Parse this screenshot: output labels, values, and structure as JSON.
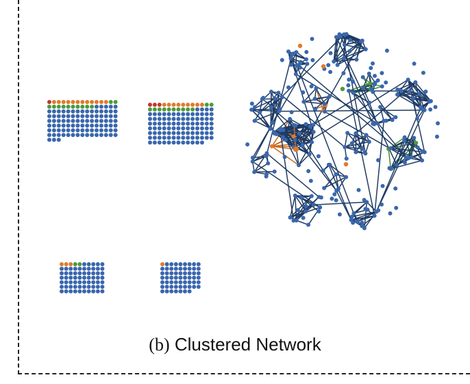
{
  "caption": {
    "prefix": "(b)",
    "text": "Clustered Network"
  },
  "colors": {
    "node_blue": "#3a67ad",
    "node_orange": "#e07b2c",
    "node_green": "#4c9a3d",
    "node_red": "#c0392b",
    "edge_dark": "#1f3b63",
    "edge_orange": "#c96b22",
    "edge_green": "#3d8a33",
    "frame": "#222222"
  },
  "node_groups": [
    {
      "id": "grid-large-left",
      "nodes": 123,
      "highlighted": [
        "red",
        "orange",
        "orange",
        "orange",
        "orange",
        "orange",
        "orange",
        "orange",
        "orange",
        "orange",
        "orange",
        "orange",
        "orange",
        "green",
        "green",
        "green",
        "green",
        "green",
        "green",
        "green",
        "green",
        "green",
        "green",
        "green",
        "green"
      ]
    },
    {
      "id": "grid-large-right",
      "nodes": 124,
      "highlighted": [
        "red",
        "red",
        "red",
        "orange",
        "orange",
        "orange",
        "orange",
        "orange",
        "orange",
        "orange",
        "orange",
        "orange",
        "green",
        "green",
        "green",
        "green",
        "green",
        "green",
        "green",
        "green",
        "green",
        "green",
        "green",
        "green"
      ]
    },
    {
      "id": "grid-small-left",
      "nodes": 70,
      "highlighted": [
        "orange",
        "orange",
        "orange",
        "green",
        "green"
      ]
    },
    {
      "id": "grid-small-right",
      "nodes": 61,
      "highlighted": [
        "orange"
      ]
    },
    {
      "id": "clustered-network",
      "nodes": 240,
      "clusters": 14
    }
  ]
}
